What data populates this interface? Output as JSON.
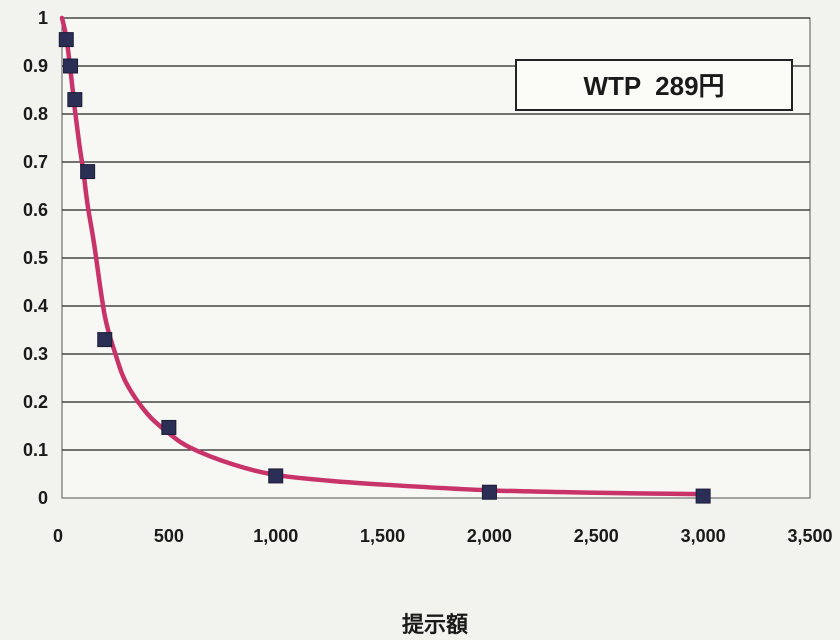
{
  "chart_data": {
    "type": "scatter",
    "title": "",
    "xlabel": "提示額",
    "ylabel": "",
    "xlim": [
      0,
      3500
    ],
    "ylim": [
      0,
      1
    ],
    "x_ticks": [
      "0",
      "500",
      "1,000",
      "1,500",
      "2,000",
      "2,500",
      "3,000",
      "3,500"
    ],
    "y_ticks": [
      "0",
      "0.1",
      "0.2",
      "0.3",
      "0.4",
      "0.5",
      "0.6",
      "0.7",
      "0.8",
      "0.9",
      "1"
    ],
    "x_tick_values": [
      0,
      500,
      1000,
      1500,
      2000,
      2500,
      3000,
      3500
    ],
    "y_tick_values": [
      0,
      0.1,
      0.2,
      0.3,
      0.4,
      0.5,
      0.6,
      0.7,
      0.8,
      0.9,
      1
    ],
    "grid": "horizontal",
    "legend": "none",
    "annotation": "WTP  289円",
    "series": [
      {
        "kind": "points",
        "marker": "square",
        "color": "#2b2f55",
        "x": [
          20,
          40,
          60,
          120,
          200,
          500,
          1000,
          2000,
          3000
        ],
        "y": [
          0.955,
          0.9,
          0.83,
          0.68,
          0.33,
          0.147,
          0.046,
          0.012,
          0.004
        ]
      },
      {
        "kind": "curve",
        "color": "#c8336a",
        "x": [
          0,
          20,
          40,
          60,
          80,
          100,
          120,
          150,
          200,
          250,
          300,
          400,
          500,
          600,
          800,
          1000,
          1250,
          1500,
          2000,
          2500,
          3000
        ],
        "y": [
          1.0,
          0.96,
          0.89,
          0.81,
          0.74,
          0.68,
          0.61,
          0.53,
          0.38,
          0.3,
          0.24,
          0.175,
          0.135,
          0.105,
          0.07,
          0.048,
          0.036,
          0.028,
          0.016,
          0.011,
          0.008
        ]
      }
    ]
  }
}
